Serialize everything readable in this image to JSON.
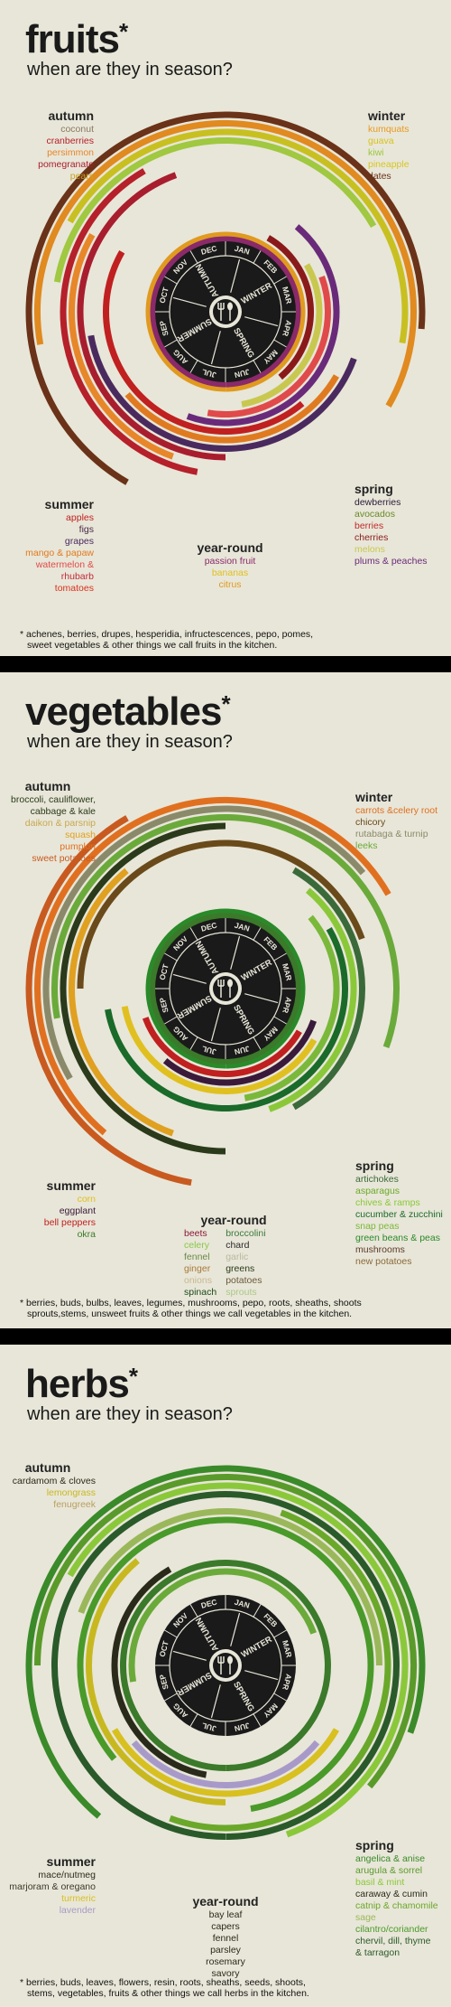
{
  "panels": [
    {
      "id": "fruits",
      "title": "fruits",
      "subtitle": "when are they in season?",
      "wheel": {
        "months": [
          "DEC",
          "JAN",
          "FEB",
          "MAR",
          "APR",
          "MAY",
          "JUN",
          "JUL",
          "AUG",
          "SEP",
          "OCT",
          "NOV"
        ],
        "seasons": [
          "WINTER",
          "SPRING",
          "SUMMER",
          "AUTUMN"
        ]
      },
      "groups": {
        "autumn": {
          "title": "autumn",
          "items": [
            {
              "t": "coconut",
              "c": "#8a7a60"
            },
            {
              "t": "cranberries",
              "c": "#b5202a"
            },
            {
              "t": "persimmon",
              "c": "#e8862a"
            },
            {
              "t": "pomegranate",
              "c": "#a81e2e"
            },
            {
              "t": "pears",
              "c": "#c9a21e"
            }
          ]
        },
        "winter": {
          "title": "winter",
          "items": [
            {
              "t": "kumquats",
              "c": "#e89a22"
            },
            {
              "t": "guava",
              "c": "#d8c21e"
            },
            {
              "t": "kiwi",
              "c": "#9cc83c"
            },
            {
              "t": "pineapple",
              "c": "#d6c624"
            },
            {
              "t": "dates",
              "c": "#6a3218"
            }
          ]
        },
        "summer": {
          "title": "summer",
          "items": [
            {
              "t": "apples",
              "c": "#c02020"
            },
            {
              "t": "figs",
              "c": "#4a2a4a"
            },
            {
              "t": "grapes",
              "c": "#4a2a5e"
            },
            {
              "t": "mango & papaw",
              "c": "#e07a20"
            },
            {
              "t": "watermelon &",
              "c": "#e04a4a"
            },
            {
              "t": "rhubarb",
              "c": "#c02a3a"
            },
            {
              "t": "tomatoes",
              "c": "#d83020"
            }
          ]
        },
        "spring": {
          "title": "spring",
          "items": [
            {
              "t": "dewberries",
              "c": "#2a1a3a"
            },
            {
              "t": "avocados",
              "c": "#6a8a2a"
            },
            {
              "t": "berries",
              "c": "#c02a2a"
            },
            {
              "t": "cherries",
              "c": "#8a1a1a"
            },
            {
              "t": "melons",
              "c": "#c8c850"
            },
            {
              "t": "plums & peaches",
              "c": "#6a2a7a"
            }
          ]
        },
        "yearround": {
          "title": "year-round",
          "items": [
            {
              "t": "passion fruit",
              "c": "#8a2a6a"
            },
            {
              "t": "bananas",
              "c": "#e0c020"
            },
            {
              "t": "citrus",
              "c": "#e09a20"
            }
          ]
        }
      },
      "footnote": [
        "* achenes, berries, drupes, hesperidia, infructescences, pepo, pomes,",
        "sweet vegetables & other things we call fruits in the kitchen."
      ]
    },
    {
      "id": "vegetables",
      "title": "vegetables",
      "subtitle": "when are they in season?",
      "wheel": {
        "months": [
          "DEC",
          "JAN",
          "FEB",
          "MAR",
          "APR",
          "MAY",
          "JUN",
          "JUL",
          "AUG",
          "SEP",
          "OCT",
          "NOV"
        ],
        "seasons": [
          "WINTER",
          "SPRING",
          "SUMMER",
          "AUTUMN"
        ]
      },
      "groups": {
        "autumn": {
          "title": "autumn",
          "items": [
            {
              "t": "broccoli, cauliflower,",
              "c": "#2a3a1a"
            },
            {
              "t": "cabbage & kale",
              "c": "#2a3a1a"
            },
            {
              "t": "daikon & parsnip",
              "c": "#c8a850"
            },
            {
              "t": "squash",
              "c": "#e0a020"
            },
            {
              "t": "pumpkin",
              "c": "#e07020"
            },
            {
              "t": "sweet potatoes",
              "c": "#c85a20"
            }
          ]
        },
        "winter": {
          "title": "winter",
          "items": [
            {
              "t": "carrots &celery root",
              "c": "#e07020"
            },
            {
              "t": "chicory",
              "c": "#6a4a1a"
            },
            {
              "t": "rutabaga & turnip",
              "c": "#8a8a6a"
            },
            {
              "t": "leeks",
              "c": "#6aaa3a"
            }
          ]
        },
        "summer": {
          "title": "summer",
          "items": [
            {
              "t": "corn",
              "c": "#e0c020"
            },
            {
              "t": "eggplant",
              "c": "#3a1a3a"
            },
            {
              "t": "bell peppers",
              "c": "#c02020"
            },
            {
              "t": "okra",
              "c": "#3a7a2a"
            }
          ]
        },
        "spring": {
          "title": "spring",
          "items": [
            {
              "t": "artichokes",
              "c": "#3a6a3a"
            },
            {
              "t": "asparagus",
              "c": "#6aaa2a"
            },
            {
              "t": "chives & ramps",
              "c": "#8ac83a"
            },
            {
              "t": "cucumber & zucchini",
              "c": "#1a6a2a"
            },
            {
              "t": "snap peas",
              "c": "#7ab83a"
            },
            {
              "t": "green beans & peas",
              "c": "#2a8a2a"
            },
            {
              "t": "mushrooms",
              "c": "#5a3a2a"
            },
            {
              "t": "new potatoes",
              "c": "#8a6a3a"
            }
          ]
        },
        "yearround": {
          "title": "year-round",
          "col1": [
            {
              "t": "beets",
              "c": "#8a1a3a"
            },
            {
              "t": "celery",
              "c": "#8ac84a"
            },
            {
              "t": "fennel",
              "c": "#6a8a4a"
            },
            {
              "t": "ginger",
              "c": "#a87a3a"
            },
            {
              "t": "onions",
              "c": "#c8b890"
            },
            {
              "t": "spinach",
              "c": "#1a4a1a"
            }
          ],
          "col2": [
            {
              "t": "broccolini",
              "c": "#3a7a3a"
            },
            {
              "t": "chard",
              "c": "#2a2a2a"
            },
            {
              "t": "garlic",
              "c": "#b8b8a0"
            },
            {
              "t": "greens",
              "c": "#2a3a1a"
            },
            {
              "t": "potatoes",
              "c": "#6a5a3a"
            },
            {
              "t": "sprouts",
              "c": "#aac88a"
            }
          ]
        }
      },
      "footnote": [
        "* berries, buds, bulbs, leaves, legumes, mushrooms, pepo, roots, sheaths, shoots",
        "sprouts,stems, unsweet fruits & other things we call vegetables in the kitchen."
      ]
    },
    {
      "id": "herbs",
      "title": "herbs",
      "subtitle": "when are they in season?",
      "wheel": {
        "months": [
          "DEC",
          "JAN",
          "FEB",
          "MAR",
          "APR",
          "MAY",
          "JUN",
          "JUL",
          "AUG",
          "SEP",
          "OCT",
          "NOV"
        ],
        "seasons": [
          "WINTER",
          "SPRING",
          "SUMMER",
          "AUTUMN"
        ]
      },
      "groups": {
        "autumn": {
          "title": "autumn",
          "items": [
            {
              "t": "cardamom & cloves",
              "c": "#2a2a1a"
            },
            {
              "t": "lemongrass",
              "c": "#c8b820"
            },
            {
              "t": "fenugreek",
              "c": "#b8a060"
            }
          ]
        },
        "summer": {
          "title": "summer",
          "items": [
            {
              "t": "mace/nutmeg",
              "c": "#2a2a1a"
            },
            {
              "t": "marjoram & oregano",
              "c": "#3a3a2a"
            },
            {
              "t": "turmeric",
              "c": "#d8c020"
            },
            {
              "t": "lavender",
              "c": "#a89ac8"
            }
          ]
        },
        "spring": {
          "title": "spring",
          "items": [
            {
              "t": "angelica & anise",
              "c": "#3a8a2a"
            },
            {
              "t": "arugula & sorrel",
              "c": "#5a9a2a"
            },
            {
              "t": "basil & mint",
              "c": "#8ac83a"
            },
            {
              "t": "caraway & cumin",
              "c": "#2a2a1a"
            },
            {
              "t": "catnip & chamomile",
              "c": "#6aa82a"
            },
            {
              "t": "sage",
              "c": "#9ab85a"
            },
            {
              "t": "cilantro/coriander",
              "c": "#4a9a2a"
            },
            {
              "t": "chervil, dill, thyme",
              "c": "#2a5a2a"
            },
            {
              "t": "& tarragon",
              "c": "#2a5a2a"
            }
          ]
        },
        "yearround": {
          "title": "year-round",
          "items": [
            {
              "t": "bay leaf",
              "c": "#2a2a1a"
            },
            {
              "t": "capers",
              "c": "#2a2a1a"
            },
            {
              "t": "fennel",
              "c": "#2a2a1a"
            },
            {
              "t": "parsley",
              "c": "#2a2a1a"
            },
            {
              "t": "rosemary",
              "c": "#2a2a1a"
            },
            {
              "t": "savory",
              "c": "#2a2a1a"
            }
          ]
        }
      },
      "footnote": [
        "* berries, buds, leaves, flowers, resin, roots, sheaths, seeds, shoots,",
        "stems, vegetables, fruits & other things we call herbs in the kitchen."
      ]
    }
  ],
  "rings": {
    "fruits": [
      {
        "c": "#6a3218",
        "a0": -150,
        "a1": 95
      },
      {
        "c": "#e08a20",
        "a0": -100,
        "a1": 120
      },
      {
        "c": "#c8c020",
        "a0": -60,
        "a1": 100
      },
      {
        "c": "#a0c840",
        "a0": -80,
        "a1": 60
      },
      {
        "c": "#b5202a",
        "a0": 190,
        "a1": 330
      },
      {
        "c": "#e8862a",
        "a0": 200,
        "a1": 300
      },
      {
        "c": "#a81e2e",
        "a0": 180,
        "a1": 340
      },
      {
        "c": "#4a2a5e",
        "a0": 110,
        "a1": 260
      },
      {
        "c": "#e07a20",
        "a0": 120,
        "a1": 230
      },
      {
        "c": "#c02020",
        "a0": 140,
        "a1": 300
      },
      {
        "c": "#6a2a7a",
        "a0": 40,
        "a1": 200
      },
      {
        "c": "#e04a4a",
        "a0": 70,
        "a1": 190
      },
      {
        "c": "#c8c850",
        "a0": 60,
        "a1": 170
      },
      {
        "c": "#8a1a1a",
        "a0": 30,
        "a1": 140
      },
      {
        "c": "#e09a20",
        "a0": -180,
        "a1": 180
      },
      {
        "c": "#8a2a6a",
        "a0": -180,
        "a1": 180
      }
    ],
    "vegetables": [
      {
        "c": "#c85a20",
        "a0": 190,
        "a1": 330
      },
      {
        "c": "#e07020",
        "a0": -140,
        "a1": 60
      },
      {
        "c": "#8a8a6a",
        "a0": -120,
        "a1": 50
      },
      {
        "c": "#6aaa3a",
        "a0": -100,
        "a1": 110
      },
      {
        "c": "#2a3a1a",
        "a0": 180,
        "a1": 360
      },
      {
        "c": "#e0a020",
        "a0": 200,
        "a1": 320
      },
      {
        "c": "#6a4a1a",
        "a0": -90,
        "a1": 70
      },
      {
        "c": "#3a6a3a",
        "a0": 30,
        "a1": 150
      },
      {
        "c": "#8ac83a",
        "a0": 40,
        "a1": 160
      },
      {
        "c": "#1a6a2a",
        "a0": 60,
        "a1": 260
      },
      {
        "c": "#7ab83a",
        "a0": 50,
        "a1": 170
      },
      {
        "c": "#e0c020",
        "a0": 120,
        "a1": 260
      },
      {
        "c": "#3a1a3a",
        "a0": 110,
        "a1": 220
      },
      {
        "c": "#c02020",
        "a0": 120,
        "a1": 250
      },
      {
        "c": "#2a8a2a",
        "a0": -180,
        "a1": 180
      },
      {
        "c": "#5a3a2a",
        "a0": -180,
        "a1": 180
      },
      {
        "c": "#8a6a3a",
        "a0": -180,
        "a1": 180
      },
      {
        "c": "#3a7a2a",
        "a0": -180,
        "a1": 180
      }
    ],
    "herbs": [
      {
        "c": "#3a8a2a",
        "a0": -140,
        "a1": 110
      },
      {
        "c": "#5a9a2a",
        "a0": -90,
        "a1": 130
      },
      {
        "c": "#8ac83a",
        "a0": -60,
        "a1": 160
      },
      {
        "c": "#2a5a2a",
        "a0": -180,
        "a1": 180
      },
      {
        "c": "#6aa82a",
        "a0": 20,
        "a1": 200
      },
      {
        "c": "#9ab85a",
        "a0": -70,
        "a1": 90
      },
      {
        "c": "#4a9a2a",
        "a0": -130,
        "a1": 170
      },
      {
        "c": "#c8b820",
        "a0": 180,
        "a1": 320
      },
      {
        "c": "#d8c020",
        "a0": 120,
        "a1": 240
      },
      {
        "c": "#a89ac8",
        "a0": 130,
        "a1": 230
      },
      {
        "c": "#2a2a1a",
        "a0": 190,
        "a1": 330
      },
      {
        "c": "#3a7a2a",
        "a0": -180,
        "a1": 180
      },
      {
        "c": "#6aaa3a",
        "a0": -100,
        "a1": 70
      }
    ]
  }
}
